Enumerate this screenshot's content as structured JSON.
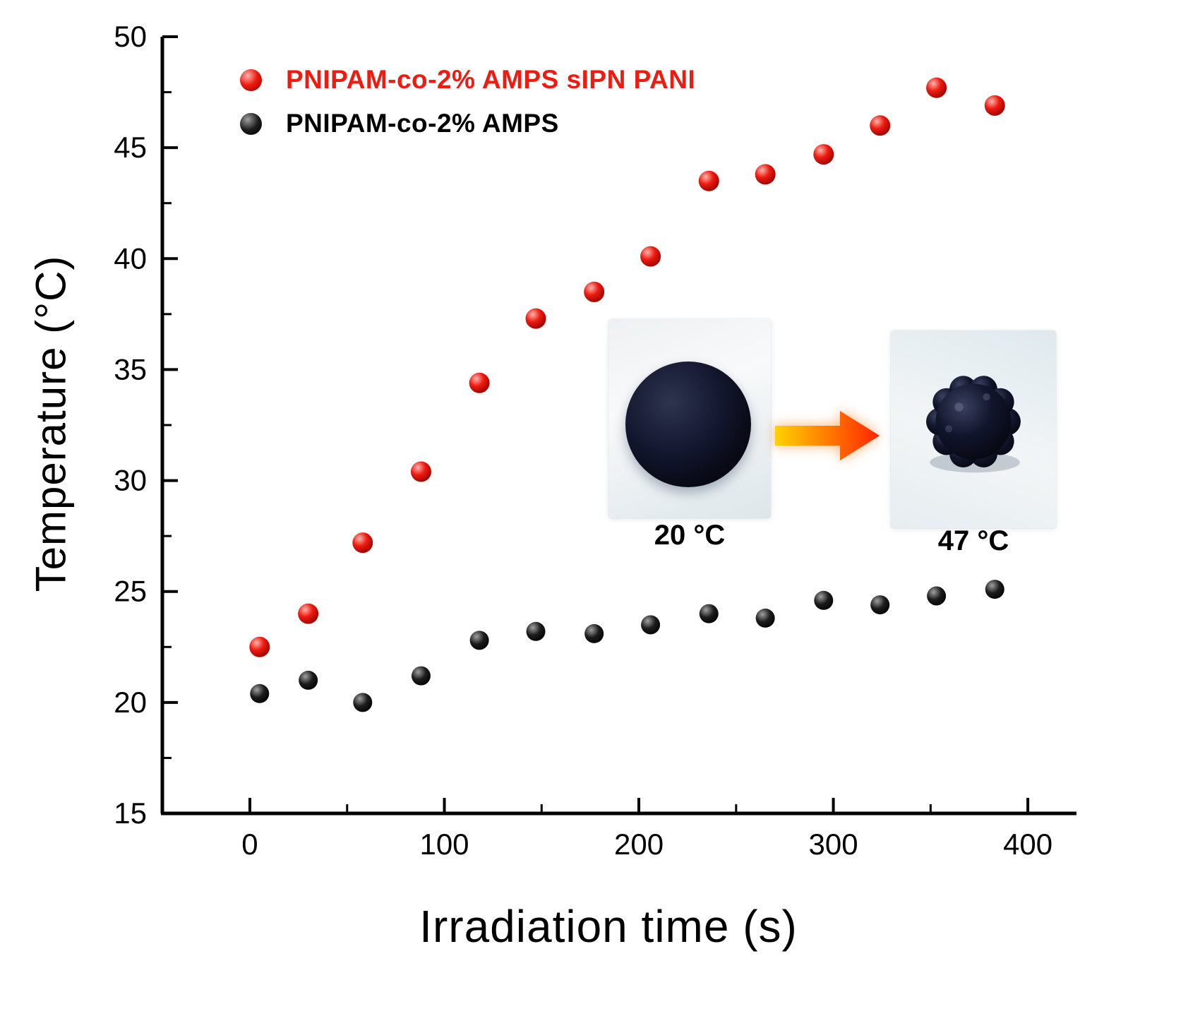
{
  "chart_data": {
    "type": "scatter",
    "title": "",
    "xlabel": "Irradiation time (s)",
    "ylabel": "Temperature (°C)",
    "xlim": [
      -45,
      425
    ],
    "ylim": [
      15,
      50
    ],
    "x_ticks": [
      0,
      100,
      200,
      300,
      400
    ],
    "x_minor_ticks": [
      50,
      150,
      250,
      350
    ],
    "y_ticks": [
      15,
      20,
      25,
      30,
      35,
      40,
      45,
      50
    ],
    "y_minor_ticks": [
      17.5,
      22.5,
      27.5,
      32.5,
      37.5,
      42.5,
      47.5
    ],
    "axis_color": "#000000",
    "grid": false,
    "legend_position": "top-left-inside",
    "series": [
      {
        "name": "PNIPAM-co-2% AMPS sIPN PANI",
        "color": "#ee1b10",
        "edge": "#8c0000",
        "highlight": "#ffb4ad",
        "marker_radius": 14.5,
        "x": [
          5,
          30,
          58,
          88,
          118,
          147,
          177,
          206,
          236,
          265,
          295,
          324,
          353,
          383
        ],
        "y": [
          22.5,
          24.0,
          27.2,
          30.4,
          34.4,
          37.3,
          38.5,
          40.1,
          43.5,
          43.8,
          44.7,
          46.0,
          47.7,
          46.9
        ]
      },
      {
        "name": "PNIPAM-co-2% AMPS",
        "color": "#1c1c1c",
        "edge": "#000000",
        "highlight": "#a0a0a0",
        "marker_radius": 13.5,
        "x": [
          5,
          30,
          58,
          88,
          118,
          147,
          177,
          206,
          236,
          265,
          295,
          324,
          353,
          383
        ],
        "y": [
          20.4,
          21.0,
          20.0,
          21.2,
          22.8,
          23.2,
          23.1,
          23.5,
          24.0,
          23.8,
          24.6,
          24.4,
          24.8,
          25.1
        ]
      }
    ]
  },
  "legend": {
    "items": [
      {
        "label": "PNIPAM-co-2% AMPS sIPN PANI",
        "color": "#ee1b10"
      },
      {
        "label": "PNIPAM-co-2% AMPS",
        "color": "#000000"
      }
    ]
  },
  "inset": {
    "left_label": "20 °C",
    "right_label": "47 °C",
    "arrow_gradient_start": "#ffd200",
    "arrow_gradient_end": "#ff2400"
  }
}
